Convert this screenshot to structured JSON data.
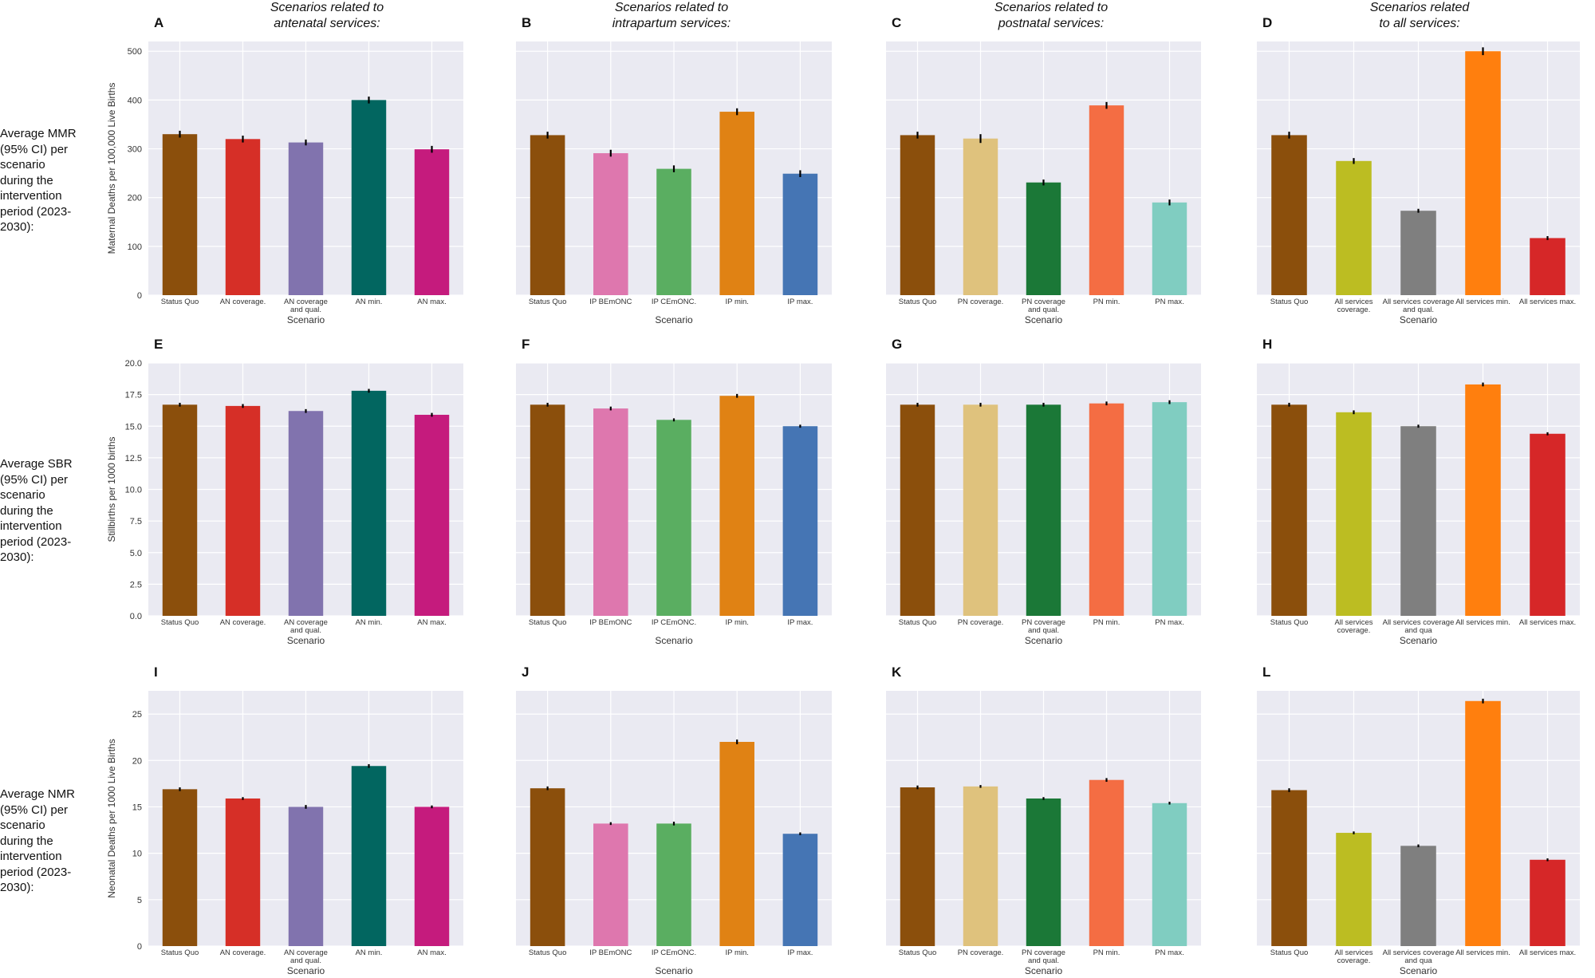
{
  "column_titles": [
    {
      "line1": "Scenarios related to",
      "line2": "antenatal services:"
    },
    {
      "line1": "Scenarios related to",
      "line2": "intrapartum services:"
    },
    {
      "line1": "Scenarios related to",
      "line2": "postnatal services:"
    },
    {
      "line1": "Scenarios related",
      "line2": "to all services:"
    }
  ],
  "row_labels": [
    {
      "lines": [
        "Average MMR",
        "(95% CI) per",
        "scenario",
        "during the",
        "intervention",
        "period (2023-",
        "2030):"
      ]
    },
    {
      "lines": [
        "Average SBR",
        "(95% CI) per",
        "scenario",
        "during the",
        "intervention",
        "period (2023-",
        "2030):"
      ]
    },
    {
      "lines": [
        "Average NMR",
        "(95% CI) per",
        "scenario",
        "during the",
        "intervention",
        "period (2023-",
        "2030):"
      ]
    }
  ],
  "xlabel": "Scenario",
  "colors": {
    "status_quo": "#8B4F0C",
    "an_cov": "#D62F27",
    "an_qual": "#8173AE",
    "an_min": "#026660",
    "an_max": "#C51B7D",
    "ip_bemonc": "#DE77AE",
    "ip_cemonc": "#5AAE61",
    "ip_min": "#E08214",
    "ip_max": "#4575B4",
    "pn_cov": "#DFC27D",
    "pn_qual": "#1B7837",
    "pn_min": "#F46D43",
    "pn_max": "#80CDC1",
    "all_cov": "#BCBD22",
    "all_qual": "#7F7F7F",
    "all_min": "#FF7F0E",
    "all_max": "#D62728",
    "panel_bg": "#EAEAF2",
    "grid": "#ffffff",
    "errbar": "#000000"
  },
  "chart_data": [
    {
      "type": "bar",
      "panel": "A",
      "ylabel": "Maternal Deaths per 100,000 Live Births",
      "ylim": [
        0,
        520
      ],
      "yticks": [
        0,
        100,
        200,
        300,
        400,
        500
      ],
      "tick_labels": [
        "0",
        "100",
        "200",
        "300",
        "400",
        "500"
      ],
      "categories": [
        "Status Quo",
        "AN coverage.",
        "AN coverage\nand qual.",
        "AN min.",
        "AN max."
      ],
      "values": [
        330,
        320,
        313,
        400,
        299
      ],
      "err": [
        7,
        7,
        6,
        7,
        7
      ],
      "colors": [
        "#8B4F0C",
        "#D62F27",
        "#8173AE",
        "#026660",
        "#C51B7D"
      ],
      "show_xlabel": true
    },
    {
      "type": "bar",
      "panel": "B",
      "ylabel": "",
      "ylim": [
        0,
        520
      ],
      "yticks": [
        0,
        100,
        200,
        300,
        400,
        500
      ],
      "tick_labels": [],
      "categories": [
        "Status Quo",
        "IP BEmONC",
        "IP CEmONC.",
        "IP min.",
        "IP max."
      ],
      "values": [
        328,
        291,
        259,
        376,
        249
      ],
      "err": [
        7,
        7,
        7,
        7,
        7
      ],
      "colors": [
        "#8B4F0C",
        "#DE77AE",
        "#5AAE61",
        "#E08214",
        "#4575B4"
      ],
      "show_xlabel": true
    },
    {
      "type": "bar",
      "panel": "C",
      "ylabel": "",
      "ylim": [
        0,
        520
      ],
      "yticks": [
        0,
        100,
        200,
        300,
        400,
        500
      ],
      "tick_labels": [],
      "categories": [
        "Status Quo",
        "PN coverage.",
        "PN coverage\nand qual.",
        "PN min.",
        "PN max."
      ],
      "values": [
        328,
        321,
        231,
        389,
        190
      ],
      "err": [
        7,
        9,
        6,
        7,
        6
      ],
      "colors": [
        "#8B4F0C",
        "#DFC27D",
        "#1B7837",
        "#F46D43",
        "#80CDC1"
      ],
      "show_xlabel": true
    },
    {
      "type": "bar",
      "panel": "D",
      "ylabel": "",
      "ylim": [
        0,
        520
      ],
      "yticks": [
        0,
        100,
        200,
        300,
        400,
        500
      ],
      "tick_labels": [],
      "categories": [
        "Status Quo",
        "All services\ncoverage.",
        "All services coverage\nand qual.",
        "All services min.",
        "All services max."
      ],
      "values": [
        328,
        275,
        173,
        500,
        117
      ],
      "err": [
        7,
        6,
        4,
        8,
        4
      ],
      "colors": [
        "#8B4F0C",
        "#BCBD22",
        "#7F7F7F",
        "#FF7F0E",
        "#D62728"
      ],
      "show_xlabel": true
    },
    {
      "type": "bar",
      "panel": "E",
      "ylabel": "Stillbirths per 1000 births",
      "ylim": [
        0,
        20
      ],
      "yticks": [
        0,
        2.5,
        5,
        7.5,
        10,
        12.5,
        15,
        17.5,
        20
      ],
      "tick_labels": [
        "0.0",
        "2.5",
        "5.0",
        "7.5",
        "10.0",
        "12.5",
        "15.0",
        "17.5",
        "20.0"
      ],
      "categories": [
        "Status Quo",
        "AN coverage.",
        "AN coverage\nand qual.",
        "AN min.",
        "AN max."
      ],
      "values": [
        16.7,
        16.6,
        16.2,
        17.8,
        15.9
      ],
      "err": [
        0.15,
        0.15,
        0.15,
        0.15,
        0.15
      ],
      "colors": [
        "#8B4F0C",
        "#D62F27",
        "#8173AE",
        "#026660",
        "#C51B7D"
      ],
      "show_xlabel": true
    },
    {
      "type": "bar",
      "panel": "F",
      "ylabel": "",
      "ylim": [
        0,
        20
      ],
      "yticks": [
        0,
        2.5,
        5,
        7.5,
        10,
        12.5,
        15,
        17.5,
        20
      ],
      "tick_labels": [],
      "categories": [
        "Status Quo",
        "IP BEmONC",
        "IP CEmONC.",
        "IP min.",
        "IP max."
      ],
      "values": [
        16.7,
        16.4,
        15.5,
        17.4,
        15.0
      ],
      "err": [
        0.15,
        0.15,
        0.12,
        0.15,
        0.12
      ],
      "colors": [
        "#8B4F0C",
        "#DE77AE",
        "#5AAE61",
        "#E08214",
        "#4575B4"
      ],
      "show_xlabel": true
    },
    {
      "type": "bar",
      "panel": "G",
      "ylabel": "",
      "ylim": [
        0,
        20
      ],
      "yticks": [
        0,
        2.5,
        5,
        7.5,
        10,
        12.5,
        15,
        17.5,
        20
      ],
      "tick_labels": [],
      "categories": [
        "Status Quo",
        "PN coverage.",
        "PN coverage\nand qual.",
        "PN min.",
        "PN max."
      ],
      "values": [
        16.7,
        16.7,
        16.7,
        16.8,
        16.9
      ],
      "err": [
        0.15,
        0.15,
        0.15,
        0.15,
        0.15
      ],
      "colors": [
        "#8B4F0C",
        "#DFC27D",
        "#1B7837",
        "#F46D43",
        "#80CDC1"
      ],
      "show_xlabel": true
    },
    {
      "type": "bar",
      "panel": "H",
      "ylabel": "",
      "ylim": [
        0,
        20
      ],
      "yticks": [
        0,
        2.5,
        5,
        7.5,
        10,
        12.5,
        15,
        17.5,
        20
      ],
      "tick_labels": [],
      "categories": [
        "Status Quo",
        "All services\ncoverage.",
        "All services coverage\nand qua",
        "All services min.",
        "All services max."
      ],
      "values": [
        16.7,
        16.1,
        15.0,
        18.3,
        14.4
      ],
      "err": [
        0.15,
        0.15,
        0.12,
        0.15,
        0.12
      ],
      "colors": [
        "#8B4F0C",
        "#BCBD22",
        "#7F7F7F",
        "#FF7F0E",
        "#D62728"
      ],
      "show_xlabel": true
    },
    {
      "type": "bar",
      "panel": "I",
      "ylabel": "Neonatal Deaths per 1000 Live Births",
      "ylim": [
        0,
        27.5
      ],
      "yticks": [
        0,
        5,
        10,
        15,
        20,
        25
      ],
      "tick_labels": [
        "0",
        "5",
        "10",
        "15",
        "20",
        "25"
      ],
      "categories": [
        "Status Quo",
        "AN coverage.",
        "AN coverage\nand qual.",
        "AN min.",
        "AN max."
      ],
      "values": [
        16.9,
        15.9,
        15.0,
        19.4,
        15.0
      ],
      "err": [
        0.2,
        0.15,
        0.2,
        0.2,
        0.15
      ],
      "colors": [
        "#8B4F0C",
        "#D62F27",
        "#8173AE",
        "#026660",
        "#C51B7D"
      ],
      "show_xlabel": true
    },
    {
      "type": "bar",
      "panel": "J",
      "ylabel": "",
      "ylim": [
        0,
        27.5
      ],
      "yticks": [
        0,
        5,
        10,
        15,
        20,
        25
      ],
      "tick_labels": [],
      "categories": [
        "Status Quo",
        "IP BEmONC",
        "IP CEmONC.",
        "IP min.",
        "IP max."
      ],
      "values": [
        17.0,
        13.2,
        13.2,
        22.0,
        12.1
      ],
      "err": [
        0.2,
        0.15,
        0.2,
        0.25,
        0.15
      ],
      "colors": [
        "#8B4F0C",
        "#DE77AE",
        "#5AAE61",
        "#E08214",
        "#4575B4"
      ],
      "show_xlabel": true
    },
    {
      "type": "bar",
      "panel": "K",
      "ylabel": "",
      "ylim": [
        0,
        27.5
      ],
      "yticks": [
        0,
        5,
        10,
        15,
        20,
        25
      ],
      "tick_labels": [],
      "categories": [
        "Status Quo",
        "PN coverage.",
        "PN coverage\nand qual.",
        "PN min.",
        "PN max."
      ],
      "values": [
        17.1,
        17.2,
        15.9,
        17.9,
        15.4
      ],
      "err": [
        0.2,
        0.15,
        0.15,
        0.2,
        0.15
      ],
      "colors": [
        "#8B4F0C",
        "#DFC27D",
        "#1B7837",
        "#F46D43",
        "#80CDC1"
      ],
      "show_xlabel": true
    },
    {
      "type": "bar",
      "panel": "L",
      "ylabel": "",
      "ylim": [
        0,
        27.5
      ],
      "yticks": [
        0,
        5,
        10,
        15,
        20,
        25
      ],
      "tick_labels": [],
      "categories": [
        "Status Quo",
        "All services\ncoverage.",
        "All services coverage\nand qua",
        "All services min.",
        "All services max."
      ],
      "values": [
        16.8,
        12.2,
        10.8,
        26.4,
        9.3
      ],
      "err": [
        0.2,
        0.15,
        0.15,
        0.25,
        0.15
      ],
      "colors": [
        "#8B4F0C",
        "#BCBD22",
        "#7F7F7F",
        "#FF7F0E",
        "#D62728"
      ],
      "show_xlabel": true
    }
  ]
}
